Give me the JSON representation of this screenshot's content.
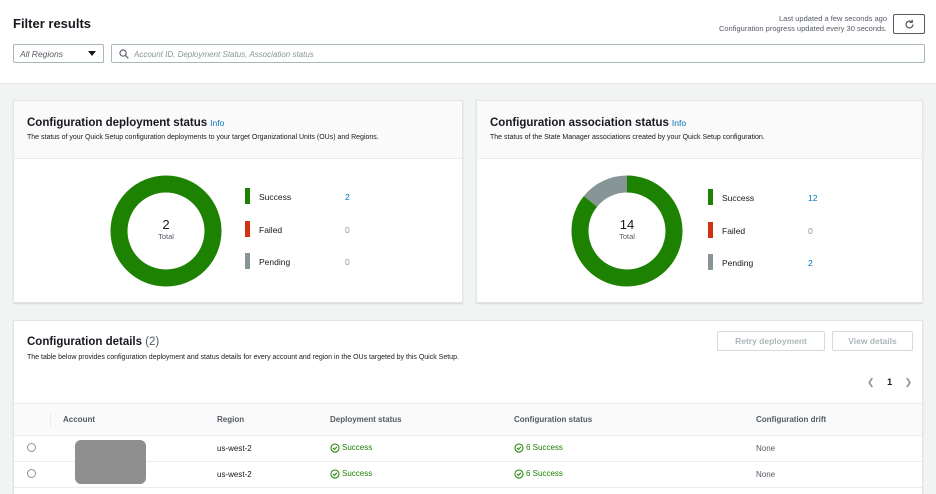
{
  "filter": {
    "title": "Filter results",
    "last_updated_line1": "Last updated a few seconds ago",
    "last_updated_line2": "Configuration progress updated every 30 seconds.",
    "region_select": "All Regions",
    "search_placeholder": "Account ID, Deployment Status, Association status"
  },
  "deployment_card": {
    "title": "Configuration deployment status",
    "info": "Info",
    "description": "The status of your Quick Setup configuration deployments to your target Organizational Units (OUs) and Regions.",
    "total": "2",
    "total_label": "Total",
    "legend": [
      {
        "label": "Success",
        "value": "2",
        "color": "#1d8102"
      },
      {
        "label": "Failed",
        "value": "0",
        "color": "#d13212"
      },
      {
        "label": "Pending",
        "value": "0",
        "color": "#879596"
      }
    ]
  },
  "association_card": {
    "title": "Configuration association status",
    "info": "Info",
    "description": "The status of the State Manager associations created by your Quick Setup configuration.",
    "total": "14",
    "total_label": "Total",
    "legend": [
      {
        "label": "Success",
        "value": "12",
        "color": "#1d8102"
      },
      {
        "label": "Failed",
        "value": "0",
        "color": "#d13212"
      },
      {
        "label": "Pending",
        "value": "2",
        "color": "#879596"
      }
    ]
  },
  "details": {
    "title": "Configuration details",
    "count": "(2)",
    "description": "The table below provides configuration deployment and status details for every account and region in the OUs targeted by this Quick Setup.",
    "retry_label": "Retry deployment",
    "view_label": "View details",
    "page": "1",
    "columns": [
      "Account",
      "Region",
      "Deployment status",
      "Configuration status",
      "Configuration drift"
    ],
    "rows": [
      {
        "region": "us-west-2",
        "deployment": "Success",
        "config": "6 Success",
        "drift": "None"
      },
      {
        "region": "us-west-2",
        "deployment": "Success",
        "config": "6 Success",
        "drift": "None"
      }
    ]
  }
}
